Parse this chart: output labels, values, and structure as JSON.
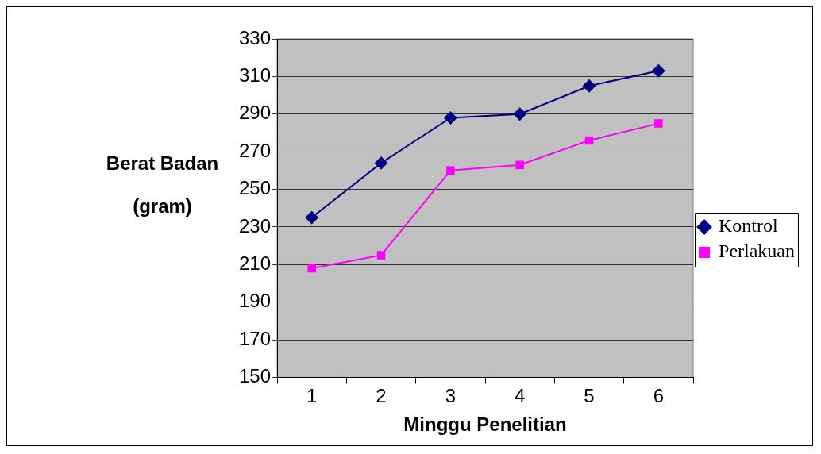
{
  "chart_data": {
    "type": "line",
    "xlabel": "Minggu Penelitian",
    "ylabel": "Berat Badan (gram)",
    "categories": [
      "1",
      "2",
      "3",
      "4",
      "5",
      "6"
    ],
    "series": [
      {
        "name": "Kontrol",
        "color": "#000080",
        "marker": "diamond",
        "values": [
          235,
          264,
          288,
          290,
          305,
          313
        ]
      },
      {
        "name": "Perlakuan",
        "color": "#ff00ff",
        "marker": "square",
        "values": [
          208,
          215,
          260,
          263,
          276,
          285
        ]
      }
    ],
    "ylim": [
      150,
      330
    ],
    "yticks": [
      150,
      170,
      190,
      210,
      230,
      250,
      270,
      290,
      310,
      330
    ],
    "grid": "y",
    "legend": "right",
    "line_style": "solid"
  }
}
